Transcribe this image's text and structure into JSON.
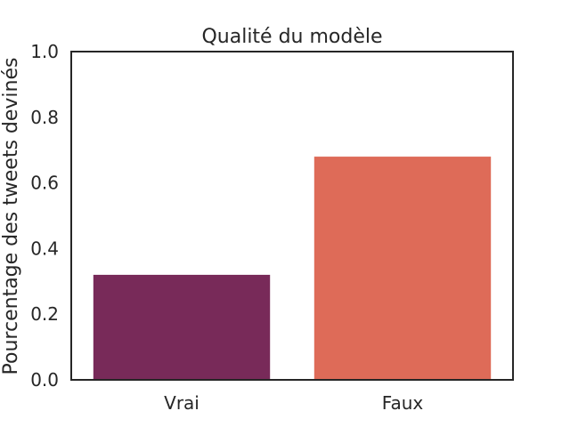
{
  "chart_data": {
    "type": "bar",
    "title": "Qualité du modèle",
    "xlabel": "",
    "ylabel": "Pourcentage des tweets devinés",
    "categories": [
      "Vrai",
      "Faux"
    ],
    "values": [
      0.32,
      0.68
    ],
    "ylim": [
      0.0,
      1.0
    ],
    "yticks": [
      "0.0",
      "0.2",
      "0.4",
      "0.6",
      "0.8",
      "1.0"
    ],
    "grid": false,
    "legend": "none",
    "colors": [
      "#782a59",
      "#de6b58"
    ],
    "frame_color": "#262626"
  }
}
